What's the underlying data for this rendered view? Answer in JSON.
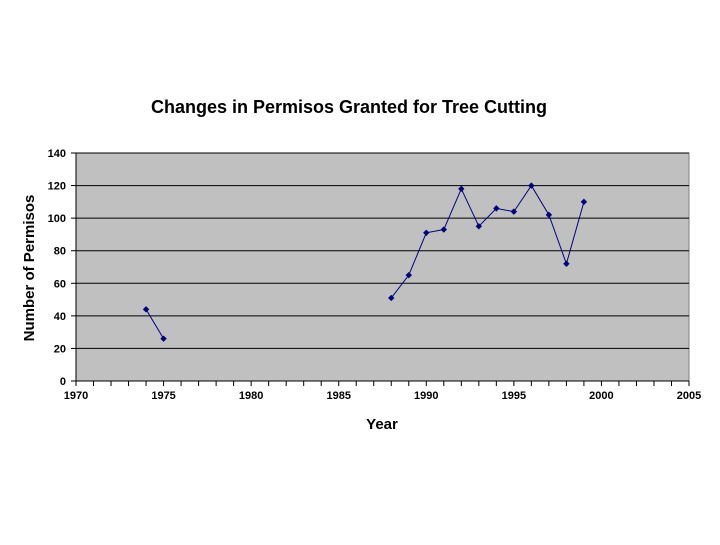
{
  "chart_data": {
    "type": "line",
    "title": "Changes in Permisos Granted for Tree Cutting",
    "xlabel": "Year",
    "ylabel": "Number of Permisos",
    "xlim": [
      1970,
      2005
    ],
    "ylim": [
      0,
      140
    ],
    "x_ticks": [
      1970,
      1975,
      1980,
      1985,
      1990,
      1995,
      2000,
      2005
    ],
    "y_ticks": [
      0,
      20,
      40,
      60,
      80,
      100,
      120,
      140
    ],
    "x_minor_step": 1,
    "grid": "horizontal",
    "legend": "none",
    "series": [
      {
        "segments": [
          [
            [
              1974,
              44
            ],
            [
              1975,
              26
            ]
          ],
          [
            [
              1988,
              51
            ],
            [
              1989,
              65
            ],
            [
              1990,
              91
            ],
            [
              1991,
              93
            ],
            [
              1992,
              118
            ],
            [
              1993,
              95
            ],
            [
              1994,
              106
            ],
            [
              1995,
              104
            ],
            [
              1996,
              120
            ],
            [
              1997,
              102
            ],
            [
              1998,
              72
            ],
            [
              1999,
              110
            ]
          ]
        ]
      }
    ]
  },
  "colors": {
    "plot_background": "#c0c0c0",
    "series_line": "#000080",
    "gridline": "#000000"
  }
}
